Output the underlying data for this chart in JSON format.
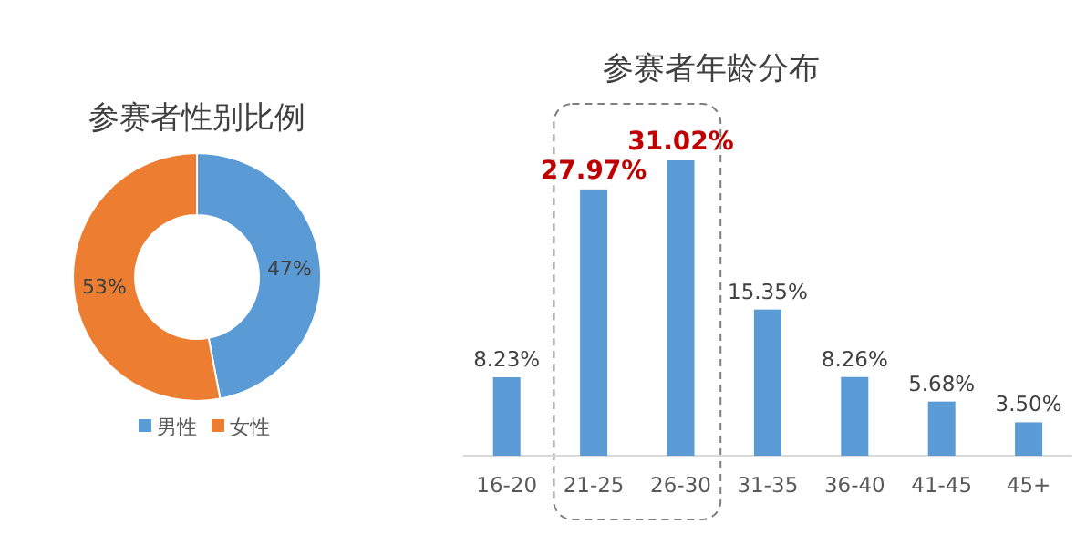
{
  "chart_data": [
    {
      "type": "donut",
      "title": "参赛者性别比例",
      "categories": [
        "男性",
        "女性"
      ],
      "values": [
        47,
        53
      ],
      "value_labels": [
        "47%",
        "53%"
      ],
      "colors": [
        "#5b9bd5",
        "#ed7d31"
      ],
      "legend": "bottom"
    },
    {
      "type": "bar",
      "title": "参赛者年龄分布",
      "categories": [
        "16-20",
        "21-25",
        "26-30",
        "31-35",
        "36-40",
        "41-45",
        "45+"
      ],
      "values": [
        8.23,
        27.97,
        31.02,
        15.35,
        8.26,
        5.68,
        3.5
      ],
      "value_labels": [
        "8.23%",
        "**27.97%**",
        "**31.02%**",
        "15.35%",
        "8.26%",
        "5.68%",
        "3.50%"
      ],
      "color": "#5b9bd5"
    }
  ]
}
